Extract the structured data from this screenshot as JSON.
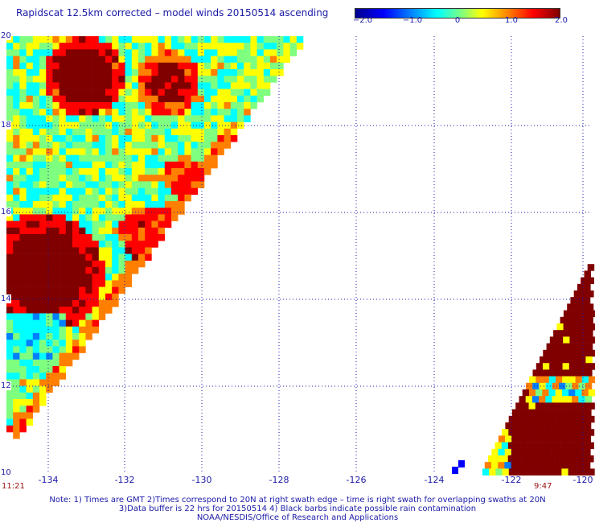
{
  "title": "Rapidscat 12.5km corrected – model winds 20150514 ascending",
  "colorbar": {
    "ticks": [
      "−2.0",
      "−1.0",
      "0",
      "1.0",
      "2.0"
    ],
    "range": [
      -2.0,
      2.0
    ],
    "colors": [
      "#00008f",
      "#0000ff",
      "#007fff",
      "#00ffff",
      "#7fff7f",
      "#ffff00",
      "#ff7f00",
      "#ff0000",
      "#800000"
    ]
  },
  "map": {
    "lon_labels": [
      "-134",
      "-132",
      "-130",
      "-128",
      "-126",
      "-124",
      "-122",
      "-120"
    ],
    "lat_labels": [
      "20",
      "18",
      "16",
      "14",
      "12",
      "10"
    ],
    "lon_range": [
      -134.5,
      -120
    ],
    "lat_range": [
      10,
      20
    ],
    "grid_line_style": "dotted"
  },
  "times": {
    "left": "11:21",
    "right": "9:47"
  },
  "notes": [
    "Note: 1) Times are GMT 2)Times correspond to 20N at right swath edge – time is right swath for overlapping swaths at 20N",
    "3)Data buffer is 22 hrs for 20150514 4) Black barbs indicate possible rain contamination",
    "NOAA/NESDIS/Office of Research and Applications"
  ]
}
